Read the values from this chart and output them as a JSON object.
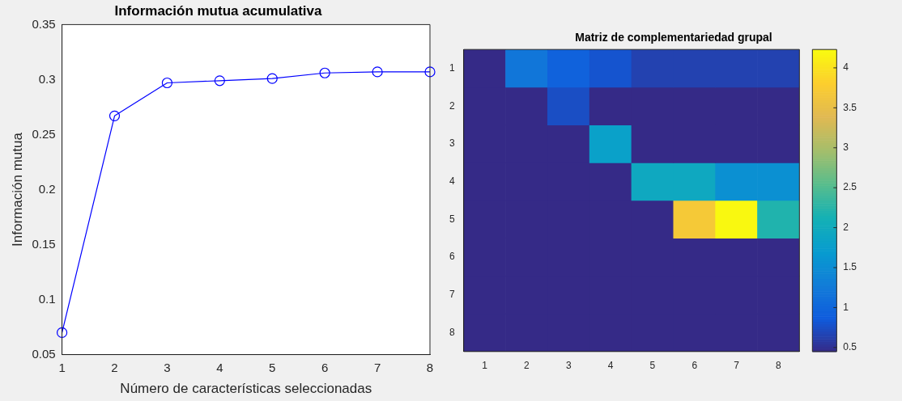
{
  "chart_data": [
    {
      "type": "line",
      "title": "Información mutua acumulativa",
      "xlabel": "Número de características seleccionadas",
      "ylabel": "Información mutua",
      "x": [
        1,
        2,
        3,
        4,
        5,
        6,
        7,
        8
      ],
      "series": [
        {
          "color": "#0000ff",
          "values": [
            0.07,
            0.267,
            0.297,
            0.299,
            0.301,
            0.306,
            0.307,
            0.307
          ]
        }
      ],
      "xlim": [
        1,
        8
      ],
      "xticks": [
        1,
        2,
        3,
        4,
        5,
        6,
        7,
        8
      ],
      "ylim": [
        0.05,
        0.35
      ],
      "yticks": [
        0.05,
        0.1,
        0.15,
        0.2,
        0.25,
        0.3,
        0.35
      ],
      "marker": "circle",
      "line_style": "solid",
      "legend": false,
      "grid": false
    },
    {
      "type": "heatmap",
      "title": "Matriz de complementariedad grupal",
      "categories": [
        "1",
        "2",
        "3",
        "4",
        "5",
        "6",
        "7",
        "8"
      ],
      "y_categories": [
        "1",
        "2",
        "3",
        "4",
        "5",
        "6",
        "7",
        "8"
      ],
      "cells": [
        [
          0.45,
          1.2,
          0.95,
          0.8,
          0.65,
          0.65,
          0.65,
          0.65
        ],
        [
          0.45,
          0.45,
          0.75,
          0.45,
          0.45,
          0.45,
          0.45,
          0.45
        ],
        [
          0.45,
          0.45,
          0.45,
          1.8,
          0.45,
          0.45,
          0.45,
          0.45
        ],
        [
          0.45,
          0.45,
          0.45,
          0.45,
          1.95,
          1.95,
          1.55,
          1.55
        ],
        [
          0.45,
          0.45,
          0.45,
          0.45,
          0.45,
          3.7,
          4.2,
          2.2
        ],
        [
          0.45,
          0.45,
          0.45,
          0.45,
          0.45,
          0.45,
          0.45,
          0.45
        ],
        [
          0.45,
          0.45,
          0.45,
          0.45,
          0.45,
          0.45,
          0.45,
          0.45
        ],
        [
          0.45,
          0.45,
          0.45,
          0.45,
          0.45,
          0.45,
          0.45,
          0.45
        ]
      ],
      "clim": [
        0.45,
        4.23
      ],
      "cticks": [
        0.5,
        1,
        1.5,
        2,
        2.5,
        3,
        3.5,
        4
      ],
      "legend": false
    }
  ]
}
